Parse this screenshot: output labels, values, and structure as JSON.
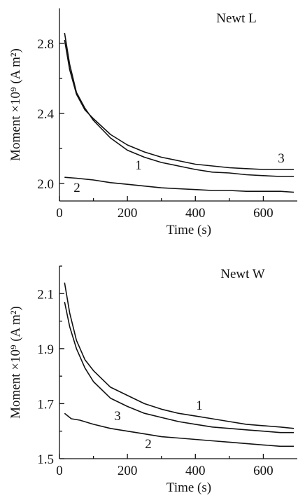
{
  "chart_data": [
    {
      "type": "line",
      "title": "Newt L",
      "xlabel": "Time (s)",
      "ylabel": "Moment ×10⁹ (A m²)",
      "xlim": [
        0,
        700
      ],
      "ylim": [
        1.9,
        3.0
      ],
      "xticks": [
        0,
        200,
        400,
        600
      ],
      "xtick_labels": [
        "0",
        "200",
        "400",
        "600"
      ],
      "yticks": [
        2.0,
        2.4,
        2.8
      ],
      "ytick_labels": [
        "2.0",
        "2.4",
        "2.8"
      ],
      "grid": false,
      "series": [
        {
          "name": "1",
          "x": [
            15,
            30,
            50,
            75,
            100,
            150,
            200,
            250,
            300,
            350,
            400,
            450,
            500,
            550,
            600,
            650,
            690
          ],
          "y": [
            2.86,
            2.68,
            2.52,
            2.43,
            2.36,
            2.26,
            2.19,
            2.15,
            2.12,
            2.1,
            2.08,
            2.065,
            2.06,
            2.05,
            2.045,
            2.04,
            2.04
          ]
        },
        {
          "name": "2",
          "x": [
            15,
            50,
            100,
            150,
            200,
            250,
            300,
            350,
            400,
            450,
            500,
            550,
            600,
            650,
            690
          ],
          "y": [
            2.035,
            2.03,
            2.02,
            2.005,
            1.995,
            1.985,
            1.975,
            1.97,
            1.965,
            1.96,
            1.96,
            1.955,
            1.955,
            1.955,
            1.95
          ]
        },
        {
          "name": "3",
          "x": [
            15,
            30,
            50,
            75,
            100,
            150,
            200,
            250,
            300,
            350,
            400,
            450,
            500,
            550,
            600,
            650,
            690
          ],
          "y": [
            2.82,
            2.65,
            2.51,
            2.42,
            2.37,
            2.28,
            2.22,
            2.18,
            2.15,
            2.13,
            2.11,
            2.1,
            2.09,
            2.085,
            2.08,
            2.08,
            2.08
          ]
        }
      ]
    },
    {
      "type": "line",
      "title": "Newt W",
      "xlabel": "Time (s)",
      "ylabel": "Moment ×10⁹ (A m²)",
      "xlim": [
        0,
        700
      ],
      "ylim": [
        1.5,
        2.2
      ],
      "xticks": [
        0,
        200,
        400,
        600
      ],
      "xtick_labels": [
        "0",
        "200",
        "400",
        "600"
      ],
      "yticks": [
        1.5,
        1.7,
        1.9,
        2.1
      ],
      "ytick_labels": [
        "1.5",
        "1.7",
        "1.9",
        "2.1"
      ],
      "grid": false,
      "series": [
        {
          "name": "1",
          "x": [
            15,
            30,
            50,
            75,
            100,
            150,
            200,
            250,
            300,
            350,
            400,
            450,
            500,
            550,
            600,
            650,
            690
          ],
          "y": [
            2.14,
            2.03,
            1.93,
            1.86,
            1.82,
            1.76,
            1.73,
            1.7,
            1.68,
            1.665,
            1.655,
            1.645,
            1.635,
            1.625,
            1.62,
            1.615,
            1.61
          ]
        },
        {
          "name": "2",
          "x": [
            15,
            35,
            60,
            100,
            150,
            200,
            250,
            300,
            350,
            400,
            450,
            500,
            550,
            600,
            650,
            690
          ],
          "y": [
            1.665,
            1.645,
            1.64,
            1.625,
            1.61,
            1.6,
            1.59,
            1.58,
            1.575,
            1.57,
            1.565,
            1.56,
            1.555,
            1.55,
            1.545,
            1.545
          ]
        },
        {
          "name": "3",
          "x": [
            15,
            30,
            50,
            75,
            100,
            150,
            200,
            250,
            300,
            350,
            400,
            450,
            500,
            550,
            600,
            650,
            690
          ],
          "y": [
            2.07,
            1.98,
            1.9,
            1.83,
            1.78,
            1.72,
            1.69,
            1.665,
            1.65,
            1.635,
            1.625,
            1.615,
            1.61,
            1.605,
            1.6,
            1.595,
            1.595
          ]
        }
      ]
    }
  ]
}
